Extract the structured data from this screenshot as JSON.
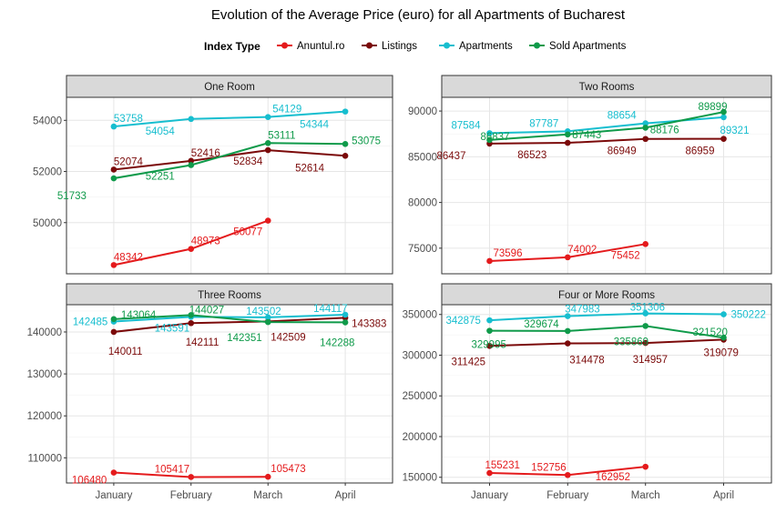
{
  "title": "Evolution of the Average Price (euro) for all Apartments of Bucharest",
  "legend": {
    "title": "Index Type",
    "items": [
      {
        "label": "Anuntul.ro",
        "color": "#e41a1c"
      },
      {
        "label": "Listings",
        "color": "#7b0a0a"
      },
      {
        "label": "Apartments",
        "color": "#17becf"
      },
      {
        "label": "Sold Apartments",
        "color": "#0f9a4a"
      }
    ]
  },
  "chart_data": {
    "type": "line",
    "categories": [
      "January",
      "February",
      "March",
      "April"
    ],
    "grid": true,
    "legend_position": "top",
    "facets": [
      {
        "title": "One Room",
        "ylim": [
          48000,
          54900
        ],
        "yticks": [
          50000,
          52000,
          54000
        ],
        "series": [
          {
            "name": "Anuntul.ro",
            "values": [
              48342,
              48973,
              50077,
              null
            ],
            "labels": [
              "48342",
              "48973",
              "50077",
              ""
            ]
          },
          {
            "name": "Listings",
            "values": [
              52074,
              52416,
              52834,
              52614
            ],
            "labels": [
              "52074",
              "52416",
              "52834",
              "52614"
            ]
          },
          {
            "name": "Apartments",
            "values": [
              53758,
              54054,
              54129,
              54344
            ],
            "labels": [
              "53758",
              "54054",
              "54129",
              "54344"
            ]
          },
          {
            "name": "Sold Apartments",
            "values": [
              51733,
              52251,
              53111,
              53075
            ],
            "labels": [
              "51733",
              "52251",
              "53111",
              "53075"
            ]
          }
        ]
      },
      {
        "title": "Two Rooms",
        "ylim": [
          72200,
          91500
        ],
        "yticks": [
          75000,
          80000,
          85000,
          90000
        ],
        "series": [
          {
            "name": "Anuntul.ro",
            "values": [
              73596,
              74002,
              75452,
              null
            ],
            "labels": [
              "73596",
              "74002",
              "75452",
              ""
            ]
          },
          {
            "name": "Listings",
            "values": [
              86437,
              86523,
              86949,
              86959
            ],
            "labels": [
              "86437",
              "86523",
              "86949",
              "86959"
            ]
          },
          {
            "name": "Apartments",
            "values": [
              87584,
              87787,
              88654,
              89321
            ],
            "labels": [
              "87584",
              "87787",
              "88654",
              "89321"
            ]
          },
          {
            "name": "Sold Apartments",
            "values": [
              86837,
              87443,
              88176,
              89899
            ],
            "labels": [
              "86837",
              "87443",
              "88176",
              "89899"
            ]
          }
        ]
      },
      {
        "title": "Three Rooms",
        "ylim": [
          104000,
          146500
        ],
        "yticks": [
          110000,
          120000,
          130000,
          140000
        ],
        "series": [
          {
            "name": "Anuntul.ro",
            "values": [
              106480,
              105417,
              105473,
              null
            ],
            "labels": [
              "106480",
              "105417",
              "105473",
              ""
            ]
          },
          {
            "name": "Listings",
            "values": [
              140011,
              142111,
              142509,
              143383
            ],
            "labels": [
              "140011",
              "142111",
              "142509",
              "143383"
            ]
          },
          {
            "name": "Apartments",
            "values": [
              142485,
              143591,
              143502,
              144117
            ],
            "labels": [
              "142485",
              "143591",
              "143502",
              "144117"
            ]
          },
          {
            "name": "Sold Apartments",
            "values": [
              143064,
              144027,
              142351,
              142288
            ],
            "labels": [
              "143064",
              "144027",
              "142351",
              "142288"
            ]
          }
        ]
      },
      {
        "title": "Four or More Rooms",
        "ylim": [
          143000,
          362000
        ],
        "yticks": [
          150000,
          200000,
          250000,
          300000,
          350000
        ],
        "series": [
          {
            "name": "Anuntul.ro",
            "values": [
              155231,
              152756,
              162952,
              null
            ],
            "labels": [
              "155231",
              "152756",
              "162952",
              ""
            ]
          },
          {
            "name": "Listings",
            "values": [
              311425,
              314478,
              314957,
              319079
            ],
            "labels": [
              "311425",
              "314478",
              "314957",
              "319079"
            ]
          },
          {
            "name": "Apartments",
            "values": [
              342875,
              347983,
              351306,
              350222
            ],
            "labels": [
              "342875",
              "347983",
              "351306",
              "350222"
            ]
          },
          {
            "name": "Sold Apartments",
            "values": [
              329995,
              329674,
              335869,
              321520
            ],
            "labels": [
              "329995",
              "329674",
              "335869",
              "321520"
            ]
          }
        ]
      }
    ]
  }
}
